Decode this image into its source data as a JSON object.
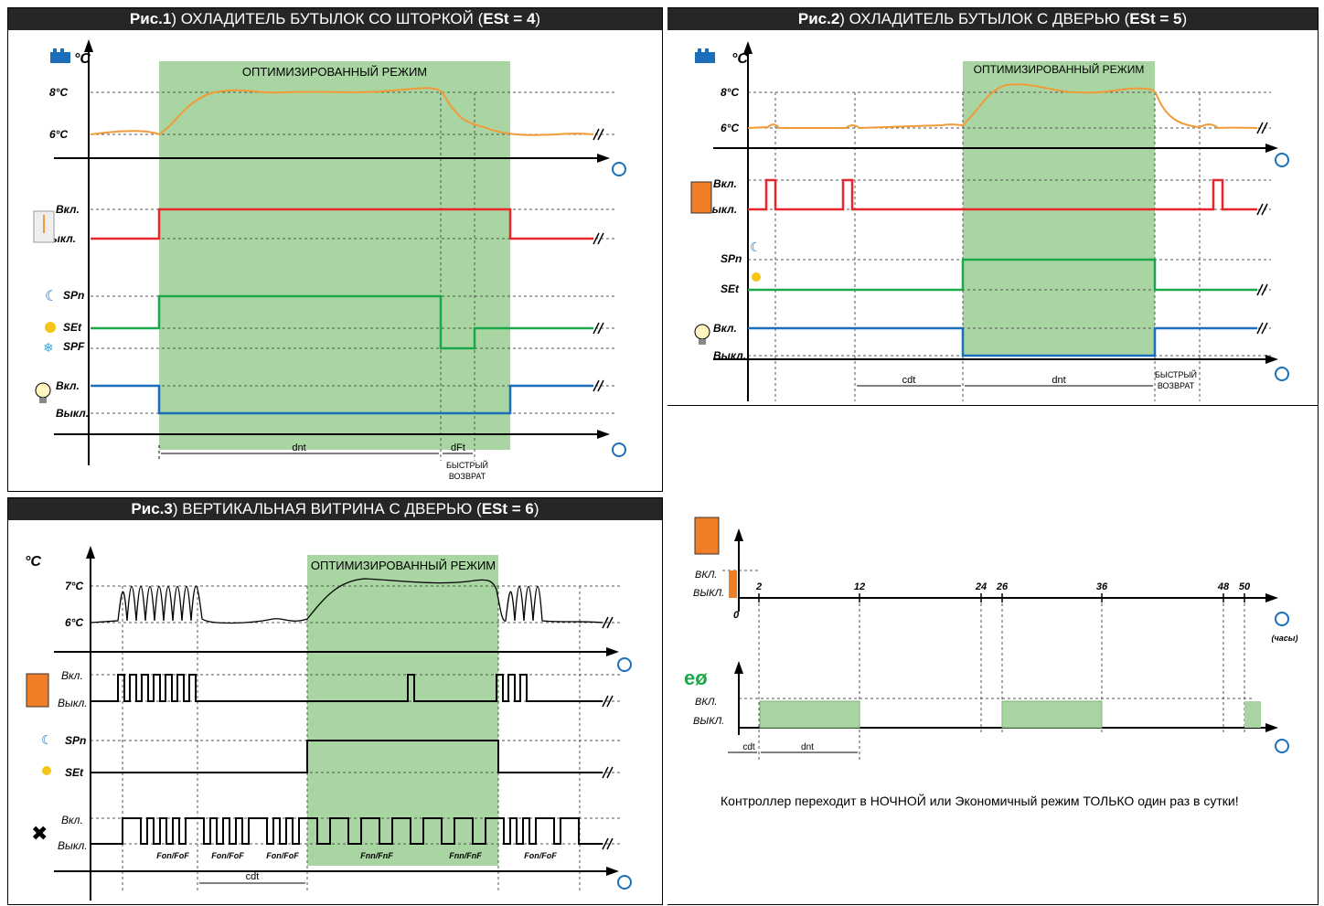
{
  "panels": {
    "fig1": {
      "title_bold": "Рис.1",
      "title_text": ") ОХЛАДИТЕЛЬ БУТЫЛОК СО ШТОРКОЙ (",
      "title_param": "ESt = 4",
      "title_end": ")"
    },
    "fig2": {
      "title_bold": "Рис.2",
      "title_text": ") ОХЛАДИТЕЛЬ БУТЫЛОК С ДВЕРЬЮ (",
      "title_param": "ESt = 5",
      "title_end": ")"
    },
    "fig3": {
      "title_bold": "Рис.3",
      "title_text": ") ВЕРТИКАЛЬНАЯ ВИТРИНА С ДВЕРЬЮ (",
      "title_param": "ESt = 6",
      "title_end": ")"
    }
  },
  "labels": {
    "unit": "°C",
    "optimized_mode": "ОПТИМИЗИРОВАННЫЙ РЕЖИМ",
    "t8": "8°C",
    "t6": "6°C",
    "t7": "7°C",
    "on": "Вкл.",
    "off": "Выкл.",
    "spn": "SPn",
    "set": "SEt",
    "spf": "SPF",
    "dnt": "dnt",
    "dft": "dFt",
    "cdt": "cdt",
    "fast_return_1": "БЫСТРЫЙ",
    "fast_return_2": "ВОЗВРАТ",
    "fan_cycle": "Fon/FoF",
    "fan_cycle_night": "Fnn/FnF",
    "on_caps": "ВКЛ.",
    "off_caps": "ВЫКЛ.",
    "hours": "(часы)",
    "zero": "0",
    "h2": "2",
    "h12": "12",
    "h24": "24",
    "h26": "26",
    "h36": "36",
    "h48": "48",
    "h50": "50"
  },
  "footer_note": "Контроллер переходит в НОЧНОЙ или Экономичный режим ТОЛЬКО один раз в сутки!",
  "colors": {
    "temp": "#f29a38",
    "shutter": "#e8262b",
    "setpoint": "#1aa84a",
    "light": "#1b6fba",
    "zone": "#a8d5a2",
    "black": "#000000"
  }
}
